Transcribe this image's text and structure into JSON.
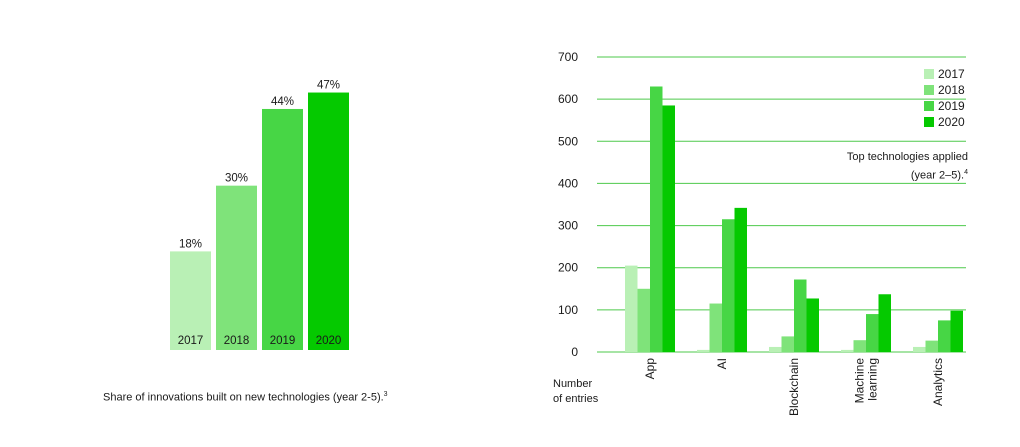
{
  "colors": {
    "c2017": "#b9f0b5",
    "c2018": "#7fe37a",
    "c2019": "#47d645",
    "c2020": "#05c900",
    "grid": "#4ec94b"
  },
  "left_caption": {
    "text": "Share of innovations built on new technologies (year 2-5).",
    "sup": "3"
  },
  "right_annotation": {
    "line1": "Top technologies applied",
    "line2": "(year 2–5).",
    "sup": "4"
  },
  "y_axis_title": [
    "Number",
    "of entries"
  ],
  "chart_data": [
    {
      "type": "bar",
      "categories": [
        "2017",
        "2018",
        "2019",
        "2020"
      ],
      "values": [
        18,
        30,
        44,
        47
      ],
      "data_labels": [
        "18%",
        "30%",
        "44%",
        "47%"
      ],
      "unit": "%",
      "ylim": [
        0,
        50
      ],
      "grid": false
    },
    {
      "type": "bar",
      "categories": [
        "App",
        "AI",
        "Blockchain",
        "Machine\nlearning",
        "Analytics"
      ],
      "series": [
        {
          "name": "2017",
          "values": [
            205,
            5,
            12,
            5,
            12
          ]
        },
        {
          "name": "2018",
          "values": [
            150,
            115,
            37,
            28,
            27
          ]
        },
        {
          "name": "2019",
          "values": [
            630,
            315,
            172,
            90,
            75
          ]
        },
        {
          "name": "2020",
          "values": [
            585,
            342,
            127,
            137,
            98
          ]
        }
      ],
      "yticks": [
        "0",
        "100",
        "200",
        "300",
        "400",
        "500",
        "600",
        "700"
      ],
      "ylim": [
        0,
        700
      ],
      "grid": true,
      "legend_position": "top-right"
    }
  ]
}
